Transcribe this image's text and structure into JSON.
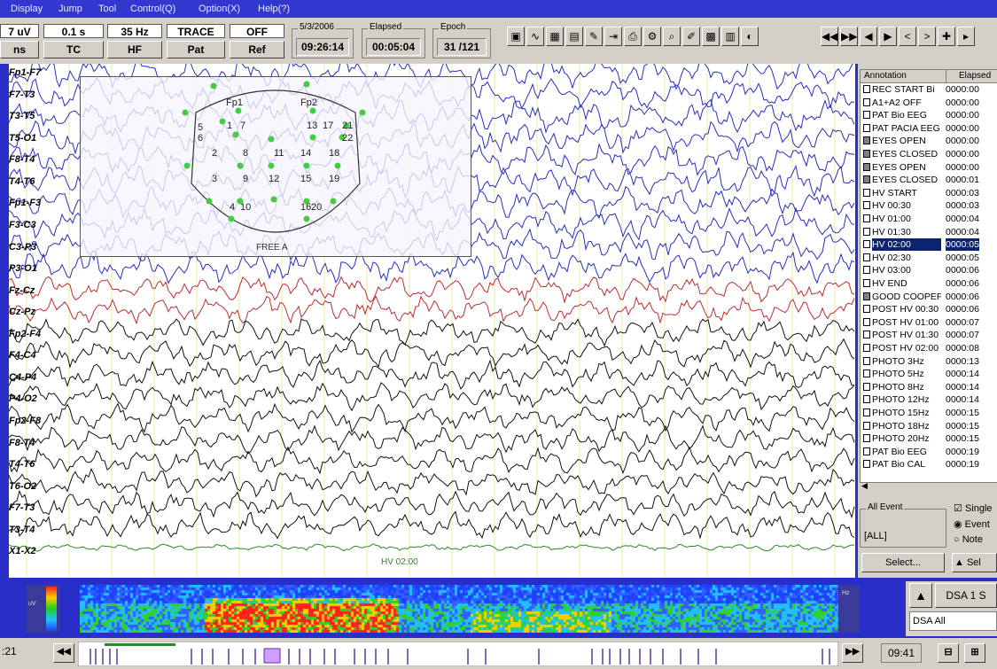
{
  "menu": [
    "Display",
    "Jump",
    "Tool",
    "Control(Q)",
    "Option(X)",
    "Help(?)"
  ],
  "settings": {
    "sensitivity": "7 uV",
    "timebase": "0.1 s",
    "hf_value": "35 Hz",
    "trace": "TRACE",
    "ref_value": "OFF"
  },
  "buttons": {
    "ms": "ns",
    "tc": "TC",
    "hf": "HF",
    "pat": "Pat",
    "ref": "Ref"
  },
  "date": {
    "caption": "5/3/2006",
    "value": "09:26:14"
  },
  "elapsed": {
    "caption": "Elapsed",
    "value": "00:05:04"
  },
  "epoch": {
    "caption": "Epoch",
    "value": "31 /121"
  },
  "toolbar_icons": [
    "save-icon",
    "waveform-icon",
    "map-icon",
    "spectrum-icon",
    "pen-icon",
    "export-icon",
    "print-icon",
    "settings-icon",
    "zoom-icon",
    "marker-icon",
    "grid-icon",
    "table-icon",
    "color-icon"
  ],
  "nav_icons": [
    "fast-rewind-icon",
    "fast-forward-icon",
    "step-back-icon",
    "step-forward-icon",
    "prev-icon",
    "next-icon",
    "cursor-icon"
  ],
  "channels": [
    "Fp1-F7",
    "F7-T3",
    "T3-T5",
    "T5-O1",
    "F8-T4",
    "T4-T6",
    "Fp1-F3",
    "F3-C3",
    "C3-P3",
    "P3-O1",
    "Fz-Cz",
    "Cz-Pz",
    "Fp2-F4",
    "F4-C4",
    "C4-P4",
    "P4-O2",
    "Fp2-F8",
    "F8-T4",
    "T4-T6",
    "T6-O2",
    "F7-T3",
    "T3-T4",
    "X1-X2"
  ],
  "montage": {
    "labels": [
      "Fp1",
      "Fp2",
      "5",
      "1",
      "7",
      "13",
      "17",
      "21",
      "6",
      "22",
      "2",
      "8",
      "11",
      "14",
      "18",
      "3",
      "9",
      "12",
      "15",
      "19",
      "4",
      "10",
      "16",
      "20"
    ],
    "caption": "FREE A"
  },
  "annotations": {
    "col_annotation": "Annotation",
    "col_elapsed": "Elapsed",
    "items": [
      {
        "name": "REC START Bi",
        "time": "0000:00",
        "filled": false
      },
      {
        "name": "A1+A2 OFF",
        "time": "0000:00",
        "filled": false
      },
      {
        "name": "PAT Bio EEG",
        "time": "0000:00",
        "filled": false
      },
      {
        "name": "PAT PACIA EEG",
        "time": "0000:00",
        "filled": false
      },
      {
        "name": "EYES OPEN",
        "time": "0000:00",
        "filled": true
      },
      {
        "name": "EYES CLOSED",
        "time": "0000:00",
        "filled": true
      },
      {
        "name": "EYES OPEN",
        "time": "0000:00",
        "filled": true
      },
      {
        "name": "EYES CLOSED",
        "time": "0000:01",
        "filled": true
      },
      {
        "name": "HV START",
        "time": "0000:03",
        "filled": false
      },
      {
        "name": "HV 00:30",
        "time": "0000:03",
        "filled": false
      },
      {
        "name": "HV 01:00",
        "time": "0000:04",
        "filled": false
      },
      {
        "name": "HV 01:30",
        "time": "0000:04",
        "filled": false
      },
      {
        "name": "HV 02:00",
        "time": "0000:05",
        "filled": false,
        "selected": true
      },
      {
        "name": "HV 02:30",
        "time": "0000:05",
        "filled": false
      },
      {
        "name": "HV 03:00",
        "time": "0000:06",
        "filled": false
      },
      {
        "name": "HV END",
        "time": "0000:06",
        "filled": false
      },
      {
        "name": "GOOD COOPEF",
        "time": "0000:06",
        "filled": true
      },
      {
        "name": "POST HV 00:30",
        "time": "0000:06",
        "filled": false
      },
      {
        "name": "POST HV 01:00",
        "time": "0000:07",
        "filled": false
      },
      {
        "name": "POST HV 01:30",
        "time": "0000:07",
        "filled": false
      },
      {
        "name": "POST HV 02:00",
        "time": "0000:08",
        "filled": false
      },
      {
        "name": "PHOTO 3Hz",
        "time": "0000:13",
        "filled": false
      },
      {
        "name": "PHOTO 5Hz",
        "time": "0000:14",
        "filled": false
      },
      {
        "name": "PHOTO 8Hz",
        "time": "0000:14",
        "filled": false
      },
      {
        "name": "PHOTO 12Hz",
        "time": "0000:14",
        "filled": false
      },
      {
        "name": "PHOTO 15Hz",
        "time": "0000:15",
        "filled": false
      },
      {
        "name": "PHOTO 18Hz",
        "time": "0000:15",
        "filled": false
      },
      {
        "name": "PHOTO 20Hz",
        "time": "0000:15",
        "filled": false
      },
      {
        "name": "PAT Bio EEG",
        "time": "0000:19",
        "filled": false
      },
      {
        "name": "PAT Bio CAL",
        "time": "0000:19",
        "filled": false
      }
    ]
  },
  "event_panel": {
    "caption": "All Event",
    "value": "[ALL]",
    "single": "Single",
    "event": "Event",
    "note": "Note",
    "select_button": "Select...",
    "sel_button": "Sel"
  },
  "trace_marker": "HV 02:00",
  "dsa": {
    "button": "DSA 1 S",
    "dropdown": "DSA All",
    "left_scale": "uV",
    "right_scale": "Hz"
  },
  "bottom": {
    "left_time": ":21",
    "right_time": "09:41"
  },
  "colors": {
    "blue_trace": "#2830b8",
    "red_trace": "#b83030",
    "black_trace": "#111111",
    "green_trace": "#2a8a2a",
    "electrode": "#44cc44",
    "selection": "#0a2470"
  }
}
